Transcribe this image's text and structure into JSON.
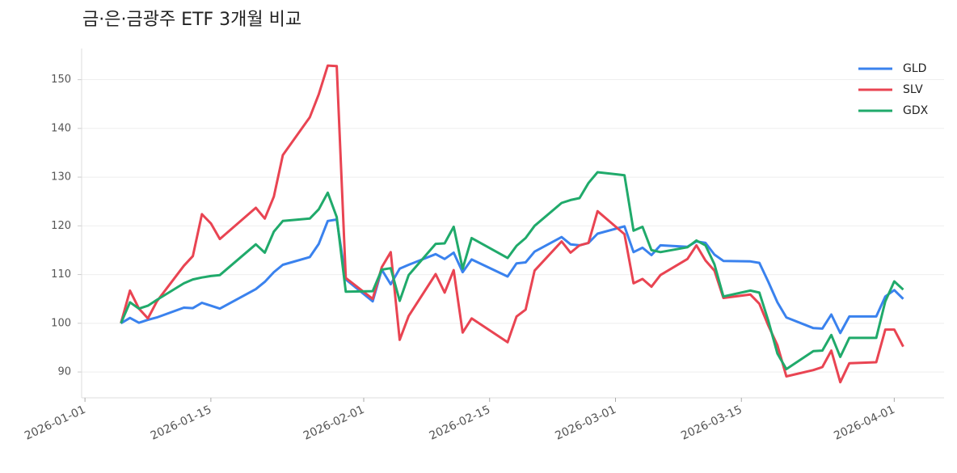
{
  "chart_data": {
    "type": "line",
    "title": "금·은·금광주 ETF 3개월 비교",
    "x": [
      "2026-01-05",
      "2026-01-06",
      "2026-01-07",
      "2026-01-08",
      "2026-01-09",
      "2026-01-12",
      "2026-01-13",
      "2026-01-14",
      "2026-01-15",
      "2026-01-16",
      "2026-01-20",
      "2026-01-21",
      "2026-01-22",
      "2026-01-23",
      "2026-01-26",
      "2026-01-27",
      "2026-01-28",
      "2026-01-29",
      "2026-01-30",
      "2026-02-02",
      "2026-02-03",
      "2026-02-04",
      "2026-02-05",
      "2026-02-06",
      "2026-02-09",
      "2026-02-10",
      "2026-02-11",
      "2026-02-12",
      "2026-02-13",
      "2026-02-17",
      "2026-02-18",
      "2026-02-19",
      "2026-02-20",
      "2026-02-23",
      "2026-02-24",
      "2026-02-25",
      "2026-02-26",
      "2026-02-27",
      "2026-03-02",
      "2026-03-03",
      "2026-03-04",
      "2026-03-05",
      "2026-03-06",
      "2026-03-09",
      "2026-03-10",
      "2026-03-11",
      "2026-03-12",
      "2026-03-13",
      "2026-03-16",
      "2026-03-17",
      "2026-03-18",
      "2026-03-19",
      "2026-03-20",
      "2026-03-23",
      "2026-03-24",
      "2026-03-25",
      "2026-03-26",
      "2026-03-27",
      "2026-03-30",
      "2026-03-31",
      "2026-04-01",
      "2026-04-02"
    ],
    "series": [
      {
        "name": "GLD",
        "color": "#3a82ee",
        "values": [
          100,
          101.1,
          100.1,
          100.7,
          101.2,
          103.2,
          103.1,
          104.2,
          103.6,
          103.0,
          107.0,
          108.5,
          110.5,
          112.0,
          113.6,
          116.3,
          121.0,
          121.3,
          109.0,
          104.5,
          111.0,
          108.0,
          111.2,
          112.0,
          114.2,
          113.2,
          114.5,
          110.5,
          113.1,
          109.6,
          112.3,
          112.5,
          114.7,
          117.7,
          116.2,
          116.0,
          116.5,
          118.4,
          119.9,
          114.6,
          115.5,
          114.0,
          116.0,
          115.7,
          116.8,
          116.5,
          114.1,
          112.8,
          112.7,
          112.4,
          108.5,
          104.3,
          101.2,
          99.0,
          98.9,
          101.8,
          98.0,
          101.4,
          101.4,
          105.5,
          106.8,
          105.0
        ]
      },
      {
        "name": "SLV",
        "color": "#e94452",
        "values": [
          100,
          106.7,
          103.0,
          101.0,
          104.5,
          111.8,
          113.8,
          122.4,
          120.5,
          117.3,
          123.7,
          121.5,
          126.0,
          134.5,
          142.3,
          147.0,
          152.9,
          152.8,
          109.3,
          105.0,
          111.5,
          114.6,
          96.6,
          101.5,
          110.1,
          106.3,
          110.9,
          98.1,
          101.0,
          96.1,
          101.4,
          102.8,
          110.8,
          116.8,
          114.5,
          116.0,
          116.5,
          123.0,
          118.3,
          108.2,
          109.1,
          107.5,
          109.9,
          113.2,
          116.0,
          112.9,
          110.8,
          105.2,
          105.9,
          104.0,
          99.5,
          95.5,
          89.1,
          90.4,
          91.0,
          94.4,
          87.9,
          91.8,
          92.0,
          98.7,
          98.7,
          95.2
        ]
      },
      {
        "name": "GDX",
        "color": "#20aa6b",
        "values": [
          100,
          104.3,
          103.0,
          103.6,
          104.8,
          108.2,
          109.0,
          109.4,
          109.7,
          109.9,
          116.2,
          114.5,
          118.8,
          121.0,
          121.5,
          123.4,
          126.8,
          121.8,
          106.5,
          106.6,
          111.0,
          111.3,
          104.6,
          109.9,
          116.3,
          116.4,
          119.8,
          111.2,
          117.5,
          113.4,
          115.9,
          117.5,
          120.0,
          124.7,
          125.3,
          125.7,
          128.8,
          131.0,
          130.4,
          119.0,
          119.8,
          115.0,
          114.6,
          115.6,
          117.0,
          116.0,
          112.1,
          105.5,
          106.7,
          106.3,
          100.5,
          93.8,
          90.6,
          94.3,
          94.4,
          97.6,
          93.1,
          97.0,
          97.0,
          104.5,
          108.6,
          106.9
        ]
      }
    ],
    "xlim": [
      "2025-12-31",
      "2026-04-06"
    ],
    "xticks": [
      "2026-01-01",
      "2026-01-15",
      "2026-02-01",
      "2026-02-15",
      "2026-03-01",
      "2026-03-15",
      "2026-04-01"
    ],
    "ylim": [
      84.7,
      156.4
    ],
    "yticks": [
      90,
      100,
      110,
      120,
      130,
      140,
      150
    ],
    "grid": true,
    "legend": "upper right"
  }
}
